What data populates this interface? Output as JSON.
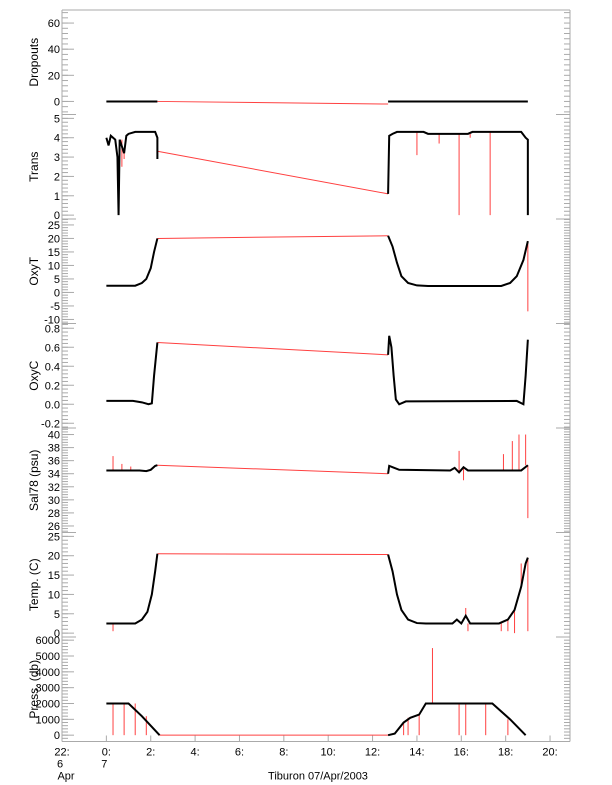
{
  "chart_data": {
    "type": "line",
    "title": "",
    "xlabel": "Tiburon 07/Apr/2003",
    "x_units": "hours since 00:00 07/Apr/2003",
    "xlim": [
      -2,
      20.9
    ],
    "x_ticks": [
      {
        "value": -2,
        "label": "22:",
        "day": "6",
        "month": "Apr"
      },
      {
        "value": 0,
        "label": "0:",
        "day": "7",
        "month": ""
      },
      {
        "value": 2,
        "label": "2:"
      },
      {
        "value": 4,
        "label": "4:"
      },
      {
        "value": 6,
        "label": "6:"
      },
      {
        "value": 8,
        "label": "8:"
      },
      {
        "value": 10,
        "label": "10:"
      },
      {
        "value": 12,
        "label": "12:"
      },
      {
        "value": 14,
        "label": "14:"
      },
      {
        "value": 16,
        "label": "16:"
      },
      {
        "value": 18,
        "label": "18:"
      },
      {
        "value": 20,
        "label": "20:"
      }
    ],
    "colors": {
      "data": "#000000",
      "gap_and_spikes": "#ff4040",
      "axis": "#aaaaaa"
    },
    "panels": [
      {
        "ylabel": "Dropouts",
        "ylim": [
          -10,
          70
        ],
        "yticks": [
          0,
          20,
          40,
          60
        ],
        "series": [
          [
            0,
            0
          ],
          [
            2.3,
            0
          ]
        ],
        "series2": [
          [
            12.7,
            0
          ],
          [
            19.0,
            0
          ]
        ],
        "gap": [
          [
            2.3,
            0
          ],
          [
            12.7,
            -2
          ]
        ],
        "spikes": []
      },
      {
        "ylabel": "Trans",
        "ylim": [
          -0.2,
          5.2
        ],
        "yticks": [
          0,
          1,
          2,
          3,
          4,
          5
        ],
        "series": [
          [
            0,
            4.0
          ],
          [
            0.1,
            3.6
          ],
          [
            0.2,
            4.1
          ],
          [
            0.4,
            3.9
          ],
          [
            0.5,
            3.0
          ],
          [
            0.55,
            0
          ],
          [
            0.6,
            3.9
          ],
          [
            0.8,
            3.2
          ],
          [
            0.9,
            4.1
          ],
          [
            1.0,
            4.2
          ],
          [
            1.3,
            4.3
          ],
          [
            2.2,
            4.3
          ],
          [
            2.3,
            4.0
          ],
          [
            2.3,
            2.9
          ]
        ],
        "series2": [
          [
            12.7,
            1.1
          ],
          [
            12.75,
            4.1
          ],
          [
            12.9,
            4.2
          ],
          [
            13.1,
            4.3
          ],
          [
            14.3,
            4.3
          ],
          [
            14.5,
            4.2
          ],
          [
            16.3,
            4.2
          ],
          [
            16.5,
            4.3
          ],
          [
            18.7,
            4.3
          ],
          [
            18.9,
            4.0
          ],
          [
            19.0,
            3.9
          ],
          [
            19.0,
            0
          ]
        ],
        "gap": [
          [
            2.3,
            3.3
          ],
          [
            12.7,
            1.1
          ]
        ],
        "spikes": [
          [
            0.5,
            1.8
          ],
          [
            0.7,
            2.5
          ],
          [
            0.8,
            2.9
          ],
          [
            14.0,
            3.1
          ],
          [
            15.0,
            3.7
          ],
          [
            15.9,
            0.0
          ],
          [
            17.3,
            0.0
          ],
          [
            16.4,
            4.0
          ]
        ]
      },
      {
        "ylabel": "OxyT",
        "ylim": [
          -11.5,
          27.2
        ],
        "yticks": [
          25,
          20,
          15,
          10,
          5,
          0,
          -5,
          -10
        ],
        "series": [
          [
            0,
            2.5
          ],
          [
            1.3,
            2.5
          ],
          [
            1.6,
            3.5
          ],
          [
            1.8,
            5
          ],
          [
            2.0,
            9
          ],
          [
            2.15,
            15
          ],
          [
            2.3,
            20
          ]
        ],
        "series2": [
          [
            12.7,
            21
          ],
          [
            12.9,
            17
          ],
          [
            13.1,
            11
          ],
          [
            13.3,
            6
          ],
          [
            13.6,
            3.5
          ],
          [
            14.0,
            2.6
          ],
          [
            14.5,
            2.4
          ],
          [
            17.8,
            2.4
          ],
          [
            18.2,
            3.5
          ],
          [
            18.5,
            6
          ],
          [
            18.8,
            12
          ],
          [
            19.0,
            19
          ]
        ],
        "gap": [
          [
            2.3,
            20
          ],
          [
            12.7,
            21
          ]
        ],
        "spikes": [
          [
            19.0,
            -7
          ]
        ]
      },
      {
        "ylabel": "OxyC",
        "ylim": [
          -0.25,
          0.85
        ],
        "yticks": [
          0.8,
          0.6,
          0.4,
          0.2,
          0.0,
          -0.2
        ],
        "tick_labels": [
          "0.8",
          "0.6",
          "0.4",
          "0.2",
          "0.0",
          "-0.2"
        ],
        "series": [
          [
            0,
            0.035
          ],
          [
            1.2,
            0.035
          ],
          [
            1.6,
            0.02
          ],
          [
            1.9,
            0.0
          ],
          [
            2.05,
            0.01
          ],
          [
            2.15,
            0.3
          ],
          [
            2.3,
            0.65
          ]
        ],
        "series2": [
          [
            12.7,
            0.52
          ],
          [
            12.75,
            0.72
          ],
          [
            12.85,
            0.6
          ],
          [
            12.95,
            0.3
          ],
          [
            13.05,
            0.05
          ],
          [
            13.2,
            0.0
          ],
          [
            13.5,
            0.03
          ],
          [
            18.5,
            0.035
          ],
          [
            18.8,
            0.0
          ],
          [
            18.9,
            0.3
          ],
          [
            19.0,
            0.68
          ]
        ],
        "gap": [
          [
            2.3,
            0.65
          ],
          [
            12.7,
            0.52
          ]
        ],
        "spikes": []
      },
      {
        "ylabel": "Sal78 (psu)",
        "ylim": [
          25,
          41
        ],
        "yticks": [
          40,
          38,
          36,
          34,
          32,
          30,
          28,
          26
        ],
        "series": [
          [
            0,
            34.5
          ],
          [
            1.5,
            34.5
          ],
          [
            1.8,
            34.4
          ],
          [
            2.0,
            34.6
          ],
          [
            2.2,
            35.2
          ],
          [
            2.3,
            35.3
          ]
        ],
        "series2": [
          [
            12.7,
            34.0
          ],
          [
            12.75,
            35.2
          ],
          [
            12.9,
            35.0
          ],
          [
            13.2,
            34.6
          ],
          [
            15.5,
            34.5
          ],
          [
            15.7,
            34.9
          ],
          [
            15.9,
            34.2
          ],
          [
            16.1,
            35.0
          ],
          [
            16.3,
            34.5
          ],
          [
            18.7,
            34.5
          ],
          [
            19.0,
            35.3
          ]
        ],
        "gap": [
          [
            2.3,
            35.3
          ],
          [
            12.7,
            34.0
          ]
        ],
        "spikes": [
          [
            0.3,
            36.7
          ],
          [
            0.7,
            35.5
          ],
          [
            1.1,
            35.1
          ],
          [
            15.9,
            37.5
          ],
          [
            16.1,
            33.0
          ],
          [
            17.9,
            37.0
          ],
          [
            18.3,
            39.0
          ],
          [
            18.6,
            40.0
          ],
          [
            18.9,
            40.0
          ],
          [
            19.0,
            27.2
          ]
        ]
      },
      {
        "ylabel": "Temp. (C)",
        "ylim": [
          -1,
          26
        ],
        "yticks": [
          25,
          20,
          15,
          10,
          5,
          0
        ],
        "series": [
          [
            0,
            2.5
          ],
          [
            1.3,
            2.5
          ],
          [
            1.6,
            3.5
          ],
          [
            1.85,
            5.5
          ],
          [
            2.05,
            10
          ],
          [
            2.2,
            16
          ],
          [
            2.3,
            20.5
          ]
        ],
        "series2": [
          [
            12.7,
            20.3
          ],
          [
            12.9,
            16
          ],
          [
            13.1,
            10
          ],
          [
            13.3,
            6
          ],
          [
            13.6,
            3.5
          ],
          [
            14.0,
            2.6
          ],
          [
            14.4,
            2.5
          ],
          [
            15.6,
            2.5
          ],
          [
            15.8,
            3.5
          ],
          [
            16.0,
            2.5
          ],
          [
            16.2,
            4.5
          ],
          [
            16.4,
            2.5
          ],
          [
            17.7,
            2.5
          ],
          [
            18.1,
            3.5
          ],
          [
            18.4,
            6
          ],
          [
            18.7,
            12
          ],
          [
            18.9,
            18
          ],
          [
            19.0,
            19.5
          ]
        ],
        "gap": [
          [
            2.3,
            20.5
          ],
          [
            12.7,
            20.3
          ]
        ],
        "spikes": [
          [
            0.3,
            0.5
          ],
          [
            16.2,
            6.5
          ],
          [
            16.3,
            0.5
          ],
          [
            17.8,
            0.5
          ],
          [
            18.1,
            0.5
          ],
          [
            18.4,
            0.0
          ],
          [
            18.7,
            18
          ],
          [
            19.0,
            0.5
          ]
        ]
      },
      {
        "ylabel": "Press. (db)",
        "ylim": [
          -400,
          6200
        ],
        "yticks": [
          6000,
          5000,
          4000,
          3000,
          2000,
          1000,
          0
        ],
        "series": [
          [
            0,
            2000
          ],
          [
            1.0,
            2000
          ],
          [
            1.6,
            1200
          ],
          [
            2.0,
            600
          ],
          [
            2.4,
            0
          ]
        ],
        "series2": [
          [
            12.7,
            0
          ],
          [
            13.0,
            100
          ],
          [
            13.4,
            800
          ],
          [
            13.7,
            1100
          ],
          [
            14.1,
            1300
          ],
          [
            14.4,
            2000
          ],
          [
            17.4,
            2000
          ],
          [
            18.2,
            1000
          ],
          [
            18.9,
            0
          ]
        ],
        "gap": [
          [
            2.4,
            0
          ],
          [
            12.7,
            0
          ]
        ],
        "spikes": [
          [
            0.3,
            0
          ],
          [
            0.8,
            0
          ],
          [
            1.3,
            0
          ],
          [
            1.8,
            0
          ],
          [
            13.4,
            0
          ],
          [
            13.6,
            0
          ],
          [
            14.1,
            0
          ],
          [
            14.7,
            5500
          ],
          [
            15.9,
            0
          ],
          [
            16.2,
            0
          ],
          [
            17.1,
            0
          ],
          [
            18.1,
            0
          ]
        ]
      }
    ]
  }
}
